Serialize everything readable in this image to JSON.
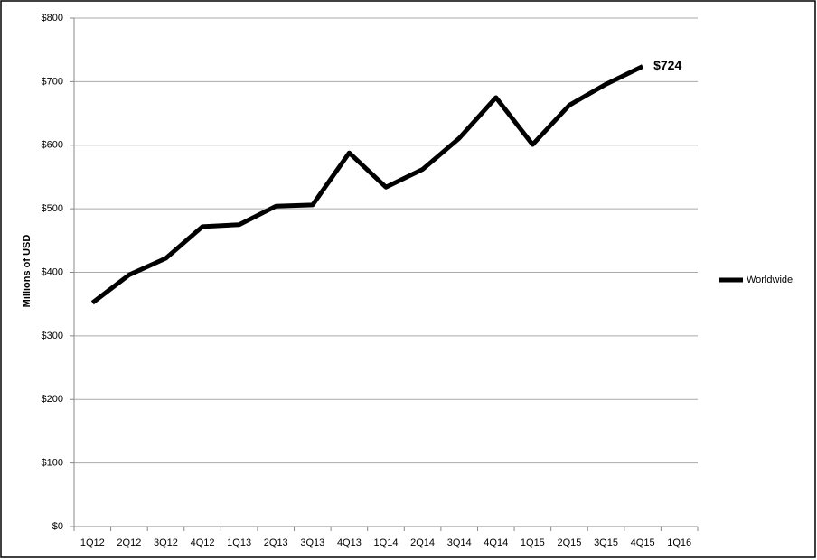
{
  "chart_data": {
    "type": "line",
    "y_label": "Millions of USD",
    "categories": [
      "1Q12",
      "2Q12",
      "3Q12",
      "4Q12",
      "1Q13",
      "2Q13",
      "3Q13",
      "4Q13",
      "1Q14",
      "2Q14",
      "3Q14",
      "4Q14",
      "1Q15",
      "2Q15",
      "3Q15",
      "4Q15",
      "1Q16"
    ],
    "series": [
      {
        "name": "Worldwide",
        "color": "#000000",
        "values": [
          352,
          396,
          422,
          472,
          475,
          504,
          506,
          588,
          534,
          562,
          611,
          675,
          601,
          663,
          696,
          724,
          null
        ],
        "value_labels": [
          null,
          null,
          null,
          null,
          null,
          null,
          null,
          null,
          null,
          null,
          null,
          null,
          null,
          null,
          null,
          "$724",
          null
        ]
      }
    ],
    "ylim": [
      0,
      800
    ],
    "yticks": [
      {
        "value": 0,
        "label": "$0"
      },
      {
        "value": 100,
        "label": "$100"
      },
      {
        "value": 200,
        "label": "$200"
      },
      {
        "value": 300,
        "label": "$300"
      },
      {
        "value": 400,
        "label": "$400"
      },
      {
        "value": 500,
        "label": "$500"
      },
      {
        "value": 600,
        "label": "$600"
      },
      {
        "value": 700,
        "label": "$700"
      },
      {
        "value": 800,
        "label": "$800"
      }
    ],
    "grid": true,
    "legend": "right"
  }
}
